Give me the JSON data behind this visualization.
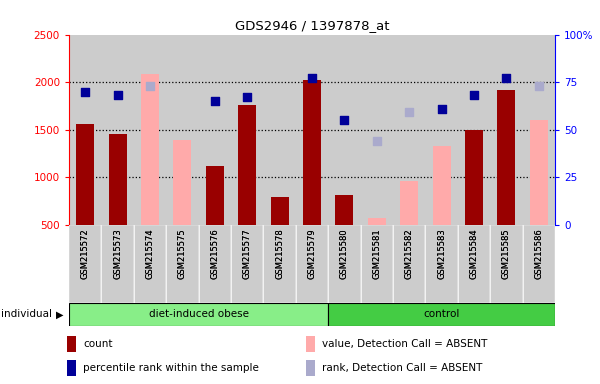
{
  "title": "GDS2946 / 1397878_at",
  "samples": [
    "GSM215572",
    "GSM215573",
    "GSM215574",
    "GSM215575",
    "GSM215576",
    "GSM215577",
    "GSM215578",
    "GSM215579",
    "GSM215580",
    "GSM215581",
    "GSM215582",
    "GSM215583",
    "GSM215584",
    "GSM215585",
    "GSM215586"
  ],
  "count": [
    1560,
    1455,
    null,
    null,
    1120,
    1760,
    790,
    2020,
    810,
    null,
    null,
    null,
    1500,
    1920,
    null
  ],
  "percentile_rank": [
    70,
    68,
    null,
    null,
    65,
    67,
    null,
    77,
    55,
    null,
    null,
    61,
    68,
    77,
    null
  ],
  "value_absent": [
    null,
    null,
    2080,
    1390,
    null,
    null,
    null,
    null,
    null,
    570,
    960,
    1330,
    null,
    null,
    1600
  ],
  "rank_absent": [
    null,
    null,
    73,
    null,
    null,
    null,
    null,
    null,
    null,
    44,
    59,
    null,
    null,
    null,
    73
  ],
  "ylim_left": [
    500,
    2500
  ],
  "ylim_right": [
    0,
    100
  ],
  "yticks_left": [
    500,
    1000,
    1500,
    2000,
    2500
  ],
  "yticks_right": [
    0,
    25,
    50,
    75,
    100
  ],
  "dotted_lines": [
    1000,
    1500,
    2000
  ],
  "group1_label": "diet-induced obese",
  "group2_label": "control",
  "group1_count": 8,
  "group2_count": 7,
  "bar_color": "#990000",
  "absent_bar_color": "#ffaaaa",
  "dot_color": "#000099",
  "absent_dot_color": "#aaaacc",
  "bg_color": "#cccccc",
  "group1_color": "#88ee88",
  "group2_color": "#44cc44",
  "individual_label": "individual",
  "bar_width": 0.55
}
